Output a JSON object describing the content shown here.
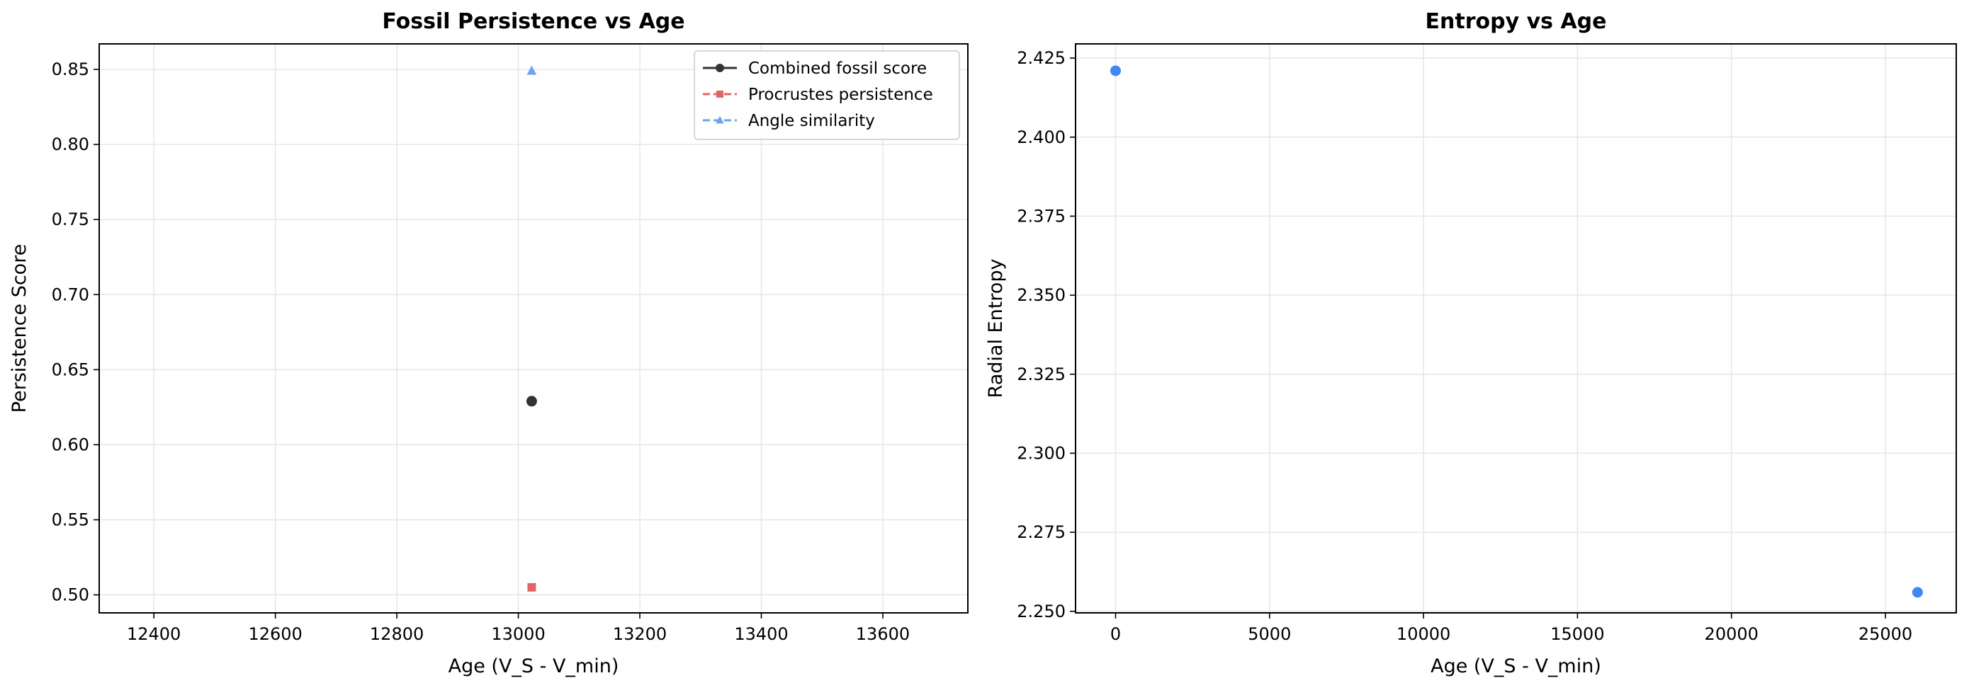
{
  "chart_data": [
    {
      "type": "scatter",
      "title": "Fossil Persistence vs Age",
      "xlabel": "Age (V_S - V_min)",
      "ylabel": "Persistence Score",
      "xlim": [
        12310,
        13740
      ],
      "ylim": [
        0.488,
        0.867
      ],
      "xticks": [
        12400,
        12600,
        12800,
        13000,
        13200,
        13400,
        13600
      ],
      "xtick_labels": [
        "12400",
        "12600",
        "12800",
        "13000",
        "13200",
        "13400",
        "13600"
      ],
      "yticks": [
        0.5,
        0.55,
        0.6,
        0.65,
        0.7,
        0.75,
        0.8,
        0.85
      ],
      "ytick_labels": [
        "0.50",
        "0.55",
        "0.60",
        "0.65",
        "0.70",
        "0.75",
        "0.80",
        "0.85"
      ],
      "grid": true,
      "legend_position": "top-right",
      "series": [
        {
          "name": "Combined fossil score",
          "x": [
            13022
          ],
          "y": [
            0.629
          ],
          "color": "#333333",
          "marker": "circle",
          "line_style": "solid"
        },
        {
          "name": "Procrustes persistence",
          "x": [
            13022
          ],
          "y": [
            0.505
          ],
          "color": "#e06666",
          "marker": "square",
          "line_style": "dashed"
        },
        {
          "name": "Angle similarity",
          "x": [
            13022
          ],
          "y": [
            0.849
          ],
          "color": "#6fa3f0",
          "marker": "triangle",
          "line_style": "dashed"
        }
      ]
    },
    {
      "type": "scatter",
      "title": "Entropy vs Age",
      "xlabel": "Age (V_S - V_min)",
      "ylabel": "Radial Entropy",
      "xlim": [
        -1300,
        27300
      ],
      "ylim": [
        2.2495,
        2.4295
      ],
      "xticks": [
        0,
        5000,
        10000,
        15000,
        20000,
        25000
      ],
      "xtick_labels": [
        "0",
        "5000",
        "10000",
        "15000",
        "20000",
        "25000"
      ],
      "yticks": [
        2.25,
        2.275,
        2.3,
        2.325,
        2.35,
        2.375,
        2.4,
        2.425
      ],
      "ytick_labels": [
        "2.250",
        "2.275",
        "2.300",
        "2.325",
        "2.350",
        "2.375",
        "2.400",
        "2.425"
      ],
      "grid": true,
      "series": [
        {
          "x": [
            0,
            26044
          ],
          "y": [
            2.421,
            2.256
          ],
          "color": "#4285f4",
          "marker": "circle"
        }
      ]
    }
  ]
}
